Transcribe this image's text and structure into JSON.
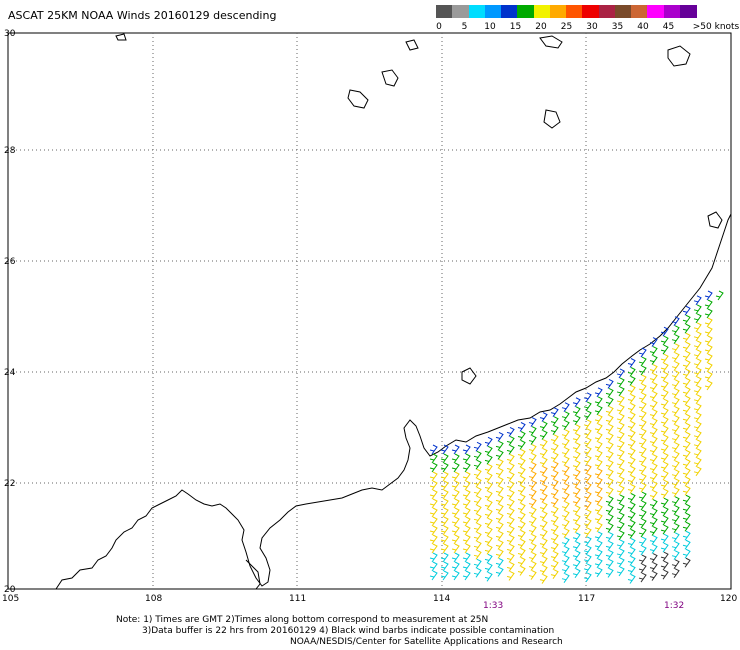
{
  "title": "ASCAT 25KM NOAA Winds 20160129 descending",
  "legend": {
    "labels": [
      "0",
      "5",
      "10",
      "15",
      "20",
      "25",
      "30",
      "35",
      "40",
      "45",
      ">50 knots"
    ],
    "colors": [
      "#555555",
      "#9a9a9a",
      "#00ddff",
      "#0099ff",
      "#0033cc",
      "#00aa00",
      "#f2f200",
      "#ffaa00",
      "#ff5500",
      "#ee0000",
      "#aa2244",
      "#7a4a2a",
      "#cc6633",
      "#ff00ff",
      "#aa00cc",
      "#660099"
    ]
  },
  "map": {
    "lat_labels": [
      "30",
      "28",
      "26",
      "24",
      "22",
      "20"
    ],
    "lon_labels": [
      "105",
      "108",
      "111",
      "114",
      "117",
      "120"
    ],
    "time_labels": [
      "1:33",
      "1:32"
    ],
    "barb_colors": {
      "near_coast": "#0033cc",
      "mid": "#00aa00",
      "core": "#f2d200",
      "core_strong": "#ffaa00",
      "south_east": "#00ccdd",
      "dark": "#333333"
    }
  },
  "notes": {
    "line1": "Note: 1) Times are GMT 2)Times along bottom correspond to measurement at 25N",
    "line2": "3)Data buffer is 22 hrs from 20160129 4) Black wind barbs indicate possible contamination",
    "line3": "NOAA/NESDIS/Center for Satellite Applications and Research"
  }
}
